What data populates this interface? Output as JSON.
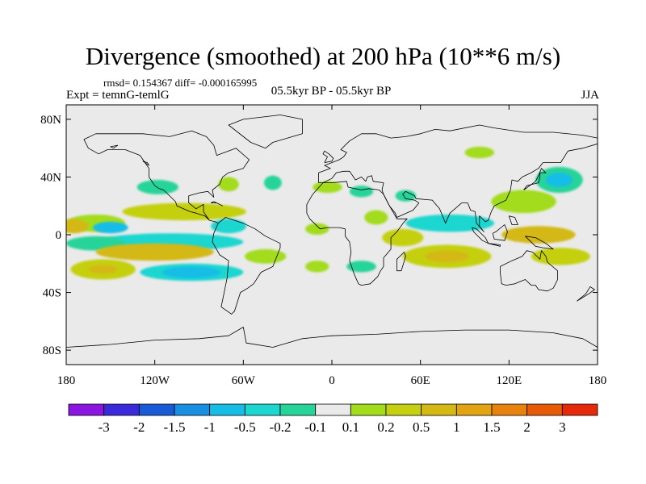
{
  "title": "Divergence (smoothed) at 200 hPa (10**6 m/s)",
  "stats": "rmsd= 0.154367 diff= -0.000165995",
  "experiment": "Expt = temnG-temlG",
  "period": "05.5kyr BP - 05.5kyr BP",
  "season": "JJA",
  "axes": {
    "x_ticks": [
      {
        "lon": -180,
        "label": "180"
      },
      {
        "lon": -120,
        "label": "120W"
      },
      {
        "lon": -60,
        "label": "60W"
      },
      {
        "lon": 0,
        "label": "0"
      },
      {
        "lon": 60,
        "label": "60E"
      },
      {
        "lon": 120,
        "label": "120E"
      },
      {
        "lon": 180,
        "label": "180"
      }
    ],
    "y_ticks": [
      {
        "lat": 80,
        "label": "80N"
      },
      {
        "lat": 40,
        "label": "40N"
      },
      {
        "lat": 0,
        "label": "0"
      },
      {
        "lat": -40,
        "label": "40S"
      },
      {
        "lat": -80,
        "label": "80S"
      }
    ]
  },
  "colorbar": {
    "colors": [
      "#8a16e0",
      "#3a2ad9",
      "#1a5ad6",
      "#1a8ee0",
      "#18bde6",
      "#1ed6d0",
      "#26d49a",
      "#eaeaea",
      "#a2dc1a",
      "#c4d010",
      "#d4b814",
      "#e3a414",
      "#e8820e",
      "#e75a08",
      "#e42a0a"
    ],
    "labels": [
      "-3",
      "-2",
      "-1.5",
      "-1",
      "-0.5",
      "-0.2",
      "-0.1",
      "0.1",
      "0.2",
      "0.5",
      "1",
      "1.5",
      "2",
      "3"
    ]
  },
  "fields": [
    {
      "lon": -118,
      "lat": 33,
      "rlon": 14,
      "rlat": 5,
      "cls": 6
    },
    {
      "lon": -70,
      "lat": 35,
      "rlon": 7,
      "rlat": 5,
      "cls": 8
    },
    {
      "lon": -40,
      "lat": 36,
      "rlon": 6,
      "rlat": 5,
      "cls": 6
    },
    {
      "lon": -3,
      "lat": 33,
      "rlon": 10,
      "rlat": 4,
      "cls": 8
    },
    {
      "lon": 20,
      "lat": 30,
      "rlon": 8,
      "rlat": 4,
      "cls": 6
    },
    {
      "lon": 50,
      "lat": 27,
      "rlon": 7,
      "rlat": 4,
      "cls": 6
    },
    {
      "lon": 100,
      "lat": 57,
      "rlon": 10,
      "rlat": 4,
      "cls": 8
    },
    {
      "lon": 154,
      "lat": 38,
      "rlon": 16,
      "rlat": 9,
      "cls": 6
    },
    {
      "lon": 154,
      "lat": 38,
      "rlon": 9,
      "rlat": 5,
      "cls": 4
    },
    {
      "lon": 130,
      "lat": 23,
      "rlon": 22,
      "rlat": 8,
      "cls": 8
    },
    {
      "lon": -100,
      "lat": 16,
      "rlon": 42,
      "rlat": 6,
      "cls": 9
    },
    {
      "lon": -160,
      "lat": 8,
      "rlon": 20,
      "rlat": 6,
      "cls": 8
    },
    {
      "lon": -175,
      "lat": 6,
      "rlon": 10,
      "rlat": 5,
      "cls": 10
    },
    {
      "lon": -150,
      "lat": 5,
      "rlon": 12,
      "rlat": 4,
      "cls": 4
    },
    {
      "lon": -70,
      "lat": 6,
      "rlon": 12,
      "rlat": 5,
      "cls": 5
    },
    {
      "lon": -110,
      "lat": -5,
      "rlon": 50,
      "rlat": 6,
      "cls": 5
    },
    {
      "lon": -160,
      "lat": -6,
      "rlon": 20,
      "rlat": 5,
      "cls": 6
    },
    {
      "lon": -120,
      "lat": -12,
      "rlon": 40,
      "rlat": 6,
      "cls": 10
    },
    {
      "lon": -155,
      "lat": -24,
      "rlon": 22,
      "rlat": 7,
      "cls": 9
    },
    {
      "lon": -155,
      "lat": -24,
      "rlon": 10,
      "rlat": 3,
      "cls": 10
    },
    {
      "lon": -95,
      "lat": -26,
      "rlon": 35,
      "rlat": 6,
      "cls": 5
    },
    {
      "lon": -95,
      "lat": -26,
      "rlon": 20,
      "rlat": 4,
      "cls": 4
    },
    {
      "lon": -45,
      "lat": -15,
      "rlon": 14,
      "rlat": 5,
      "cls": 8
    },
    {
      "lon": -10,
      "lat": 4,
      "rlon": 8,
      "rlat": 4,
      "cls": 8
    },
    {
      "lon": 30,
      "lat": 12,
      "rlon": 8,
      "rlat": 5,
      "cls": 8
    },
    {
      "lon": 48,
      "lat": -2,
      "rlon": 14,
      "rlat": 6,
      "cls": 9
    },
    {
      "lon": 80,
      "lat": 8,
      "rlon": 30,
      "rlat": 6,
      "cls": 5
    },
    {
      "lon": 78,
      "lat": -15,
      "rlon": 30,
      "rlat": 8,
      "cls": 9
    },
    {
      "lon": 78,
      "lat": -15,
      "rlon": 15,
      "rlat": 4,
      "cls": 10
    },
    {
      "lon": 140,
      "lat": 0,
      "rlon": 25,
      "rlat": 6,
      "cls": 10
    },
    {
      "lon": 155,
      "lat": -15,
      "rlon": 20,
      "rlat": 6,
      "cls": 9
    },
    {
      "lon": 20,
      "lat": -22,
      "rlon": 10,
      "rlat": 4,
      "cls": 6
    },
    {
      "lon": -10,
      "lat": -22,
      "rlon": 8,
      "rlat": 4,
      "cls": 8
    }
  ],
  "coastlines": [
    [
      [
        -168,
        66
      ],
      [
        -160,
        70
      ],
      [
        -140,
        70
      ],
      [
        -128,
        70
      ],
      [
        -110,
        68
      ],
      [
        -95,
        72
      ],
      [
        -85,
        68
      ],
      [
        -80,
        62
      ],
      [
        -78,
        55
      ],
      [
        -65,
        60
      ],
      [
        -56,
        52
      ],
      [
        -60,
        46
      ],
      [
        -70,
        43
      ],
      [
        -74,
        40
      ],
      [
        -76,
        35
      ],
      [
        -81,
        31
      ],
      [
        -80,
        26
      ],
      [
        -82,
        28
      ],
      [
        -84,
        30
      ],
      [
        -90,
        29
      ],
      [
        -97,
        27
      ],
      [
        -97,
        22
      ],
      [
        -92,
        18
      ],
      [
        -87,
        21
      ],
      [
        -87,
        16
      ],
      [
        -83,
        10
      ],
      [
        -79,
        9
      ],
      [
        -77,
        8
      ],
      [
        -80,
        1
      ],
      [
        -81,
        -5
      ],
      [
        -76,
        -14
      ],
      [
        -70,
        -18
      ],
      [
        -71,
        -30
      ],
      [
        -73,
        -40
      ],
      [
        -75,
        -50
      ],
      [
        -68,
        -55
      ],
      [
        -66,
        -53
      ],
      [
        -62,
        -40
      ],
      [
        -57,
        -37
      ],
      [
        -53,
        -34
      ],
      [
        -48,
        -26
      ],
      [
        -40,
        -22
      ],
      [
        -35,
        -9
      ],
      [
        -35,
        -6
      ],
      [
        -45,
        -1
      ],
      [
        -52,
        4
      ],
      [
        -60,
        8
      ],
      [
        -72,
        12
      ],
      [
        -77,
        8
      ],
      [
        -79,
        9
      ],
      [
        -83,
        10
      ],
      [
        -86,
        13
      ],
      [
        -92,
        15
      ],
      [
        -96,
        16
      ],
      [
        -105,
        20
      ],
      [
        -106,
        23
      ],
      [
        -112,
        29
      ],
      [
        -114,
        31
      ],
      [
        -117,
        32
      ],
      [
        -120,
        34
      ],
      [
        -124,
        40
      ],
      [
        -124,
        46
      ],
      [
        -130,
        55
      ],
      [
        -140,
        59
      ],
      [
        -152,
        59
      ],
      [
        -158,
        56
      ],
      [
        -165,
        60
      ],
      [
        -168,
        66
      ]
    ],
    [
      [
        -45,
        60
      ],
      [
        -55,
        64
      ],
      [
        -70,
        76
      ],
      [
        -60,
        80
      ],
      [
        -35,
        83
      ],
      [
        -20,
        80
      ],
      [
        -20,
        70
      ],
      [
        -40,
        64
      ],
      [
        -45,
        60
      ]
    ],
    [
      [
        -9,
        36
      ],
      [
        -9,
        43
      ],
      [
        -1,
        46
      ],
      [
        -5,
        48
      ],
      [
        5,
        52
      ],
      [
        8,
        54
      ],
      [
        10,
        57
      ],
      [
        6,
        59
      ],
      [
        12,
        65
      ],
      [
        20,
        70
      ],
      [
        30,
        70
      ],
      [
        40,
        67
      ],
      [
        50,
        68
      ],
      [
        60,
        70
      ],
      [
        70,
        73
      ],
      [
        80,
        72
      ],
      [
        100,
        76
      ],
      [
        110,
        74
      ],
      [
        130,
        71
      ],
      [
        150,
        71
      ],
      [
        170,
        69
      ],
      [
        180,
        67
      ],
      [
        180,
        63
      ],
      [
        170,
        60
      ],
      [
        160,
        58
      ],
      [
        155,
        50
      ],
      [
        143,
        50
      ],
      [
        140,
        46
      ],
      [
        135,
        43
      ],
      [
        129,
        40
      ],
      [
        126,
        37
      ],
      [
        122,
        38
      ],
      [
        121,
        31
      ],
      [
        118,
        24
      ],
      [
        110,
        20
      ],
      [
        108,
        16
      ],
      [
        106,
        10
      ],
      [
        104,
        9
      ],
      [
        100,
        13
      ],
      [
        100,
        6
      ],
      [
        103,
        2
      ],
      [
        98,
        8
      ],
      [
        97,
        16
      ],
      [
        94,
        17
      ],
      [
        92,
        22
      ],
      [
        88,
        22
      ],
      [
        80,
        15
      ],
      [
        77,
        8
      ],
      [
        73,
        18
      ],
      [
        68,
        24
      ],
      [
        57,
        25
      ],
      [
        56,
        27
      ],
      [
        50,
        30
      ],
      [
        48,
        28
      ],
      [
        50,
        25
      ],
      [
        56,
        24
      ],
      [
        59,
        22
      ],
      [
        55,
        17
      ],
      [
        44,
        12
      ],
      [
        43,
        15
      ],
      [
        39,
        20
      ],
      [
        35,
        28
      ],
      [
        34,
        31
      ],
      [
        35,
        36
      ],
      [
        28,
        37
      ],
      [
        27,
        41
      ],
      [
        24,
        40
      ],
      [
        23,
        37
      ],
      [
        20,
        40
      ],
      [
        16,
        38
      ],
      [
        12,
        44
      ],
      [
        8,
        44
      ],
      [
        3,
        43
      ],
      [
        0,
        39
      ],
      [
        -6,
        36
      ],
      [
        -9,
        36
      ]
    ],
    [
      [
        -6,
        36
      ],
      [
        -13,
        28
      ],
      [
        -17,
        21
      ],
      [
        -17,
        15
      ],
      [
        -15,
        11
      ],
      [
        -8,
        4
      ],
      [
        -3,
        5
      ],
      [
        5,
        5
      ],
      [
        9,
        4
      ],
      [
        9,
        -1
      ],
      [
        12,
        -5
      ],
      [
        13,
        -12
      ],
      [
        12,
        -18
      ],
      [
        15,
        -27
      ],
      [
        18,
        -34
      ],
      [
        20,
        -35
      ],
      [
        26,
        -34
      ],
      [
        31,
        -29
      ],
      [
        33,
        -25
      ],
      [
        35,
        -22
      ],
      [
        35,
        -16
      ],
      [
        40,
        -10
      ],
      [
        40,
        -2
      ],
      [
        44,
        2
      ],
      [
        49,
        9
      ],
      [
        51,
        11
      ],
      [
        44,
        11
      ],
      [
        43,
        13
      ],
      [
        39,
        20
      ],
      [
        35,
        28
      ],
      [
        32,
        31
      ],
      [
        25,
        32
      ],
      [
        20,
        31
      ],
      [
        11,
        33
      ],
      [
        10,
        37
      ],
      [
        0,
        36
      ],
      [
        -6,
        36
      ]
    ],
    [
      [
        44,
        -25
      ],
      [
        47,
        -25
      ],
      [
        50,
        -15
      ],
      [
        49,
        -12
      ],
      [
        44,
        -17
      ],
      [
        44,
        -25
      ]
    ],
    [
      [
        114,
        -22
      ],
      [
        114,
        -26
      ],
      [
        115,
        -34
      ],
      [
        118,
        -35
      ],
      [
        124,
        -34
      ],
      [
        131,
        -31
      ],
      [
        135,
        -35
      ],
      [
        138,
        -35
      ],
      [
        140,
        -38
      ],
      [
        146,
        -39
      ],
      [
        150,
        -37
      ],
      [
        153,
        -31
      ],
      [
        153,
        -25
      ],
      [
        146,
        -19
      ],
      [
        145,
        -15
      ],
      [
        142,
        -11
      ],
      [
        141,
        -17
      ],
      [
        136,
        -12
      ],
      [
        132,
        -11
      ],
      [
        129,
        -15
      ],
      [
        122,
        -18
      ],
      [
        114,
        -22
      ]
    ],
    [
      [
        -5,
        50
      ],
      [
        0,
        51
      ],
      [
        1,
        53
      ],
      [
        -2,
        56
      ],
      [
        -5,
        58
      ],
      [
        -6,
        56
      ],
      [
        -3,
        54
      ],
      [
        -5,
        50
      ]
    ],
    [
      [
        130,
        31
      ],
      [
        132,
        34
      ],
      [
        136,
        35
      ],
      [
        140,
        36
      ],
      [
        141,
        40
      ],
      [
        141,
        43
      ],
      [
        145,
        43
      ],
      [
        142,
        46
      ],
      [
        140,
        41
      ],
      [
        138,
        37
      ],
      [
        134,
        34
      ],
      [
        130,
        31
      ]
    ],
    [
      [
        95,
        5
      ],
      [
        98,
        4
      ],
      [
        104,
        -2
      ],
      [
        106,
        -6
      ],
      [
        102,
        -4
      ],
      [
        96,
        2
      ],
      [
        95,
        5
      ]
    ],
    [
      [
        106,
        -6
      ],
      [
        114,
        -8
      ],
      [
        114,
        -7
      ],
      [
        106,
        -6
      ]
    ],
    [
      [
        109,
        1
      ],
      [
        110,
        -3
      ],
      [
        117,
        -4
      ],
      [
        119,
        2
      ],
      [
        117,
        7
      ],
      [
        111,
        2
      ],
      [
        109,
        1
      ]
    ],
    [
      [
        131,
        -1
      ],
      [
        138,
        -2
      ],
      [
        145,
        -6
      ],
      [
        150,
        -10
      ],
      [
        143,
        -9
      ],
      [
        138,
        -8
      ],
      [
        131,
        -1
      ]
    ],
    [
      [
        120,
        13
      ],
      [
        124,
        12
      ],
      [
        126,
        7
      ],
      [
        122,
        7
      ],
      [
        120,
        13
      ]
    ],
    [
      [
        166,
        -46
      ],
      [
        174,
        -41
      ],
      [
        178,
        -38
      ],
      [
        175,
        -36
      ],
      [
        172,
        -41
      ],
      [
        166,
        -46
      ]
    ],
    [
      [
        -82,
        22
      ],
      [
        -78,
        22
      ],
      [
        -74,
        20
      ],
      [
        -80,
        23
      ],
      [
        -82,
        22
      ]
    ],
    [
      [
        -180,
        -78
      ],
      [
        -150,
        -76
      ],
      [
        -120,
        -73
      ],
      [
        -90,
        -72
      ],
      [
        -70,
        -70
      ],
      [
        -60,
        -64
      ],
      [
        -58,
        -75
      ],
      [
        -40,
        -78
      ],
      [
        -20,
        -72
      ],
      [
        0,
        -70
      ],
      [
        30,
        -69
      ],
      [
        60,
        -67
      ],
      [
        90,
        -66
      ],
      [
        120,
        -66
      ],
      [
        150,
        -68
      ],
      [
        170,
        -72
      ],
      [
        180,
        -78
      ]
    ],
    [
      [
        -145,
        62
      ],
      [
        -150,
        61
      ],
      [
        -148,
        60
      ],
      [
        -145,
        62
      ]
    ],
    [
      [
        -125,
        50
      ],
      [
        -128,
        51
      ],
      [
        -124,
        48
      ],
      [
        -125,
        50
      ]
    ]
  ]
}
